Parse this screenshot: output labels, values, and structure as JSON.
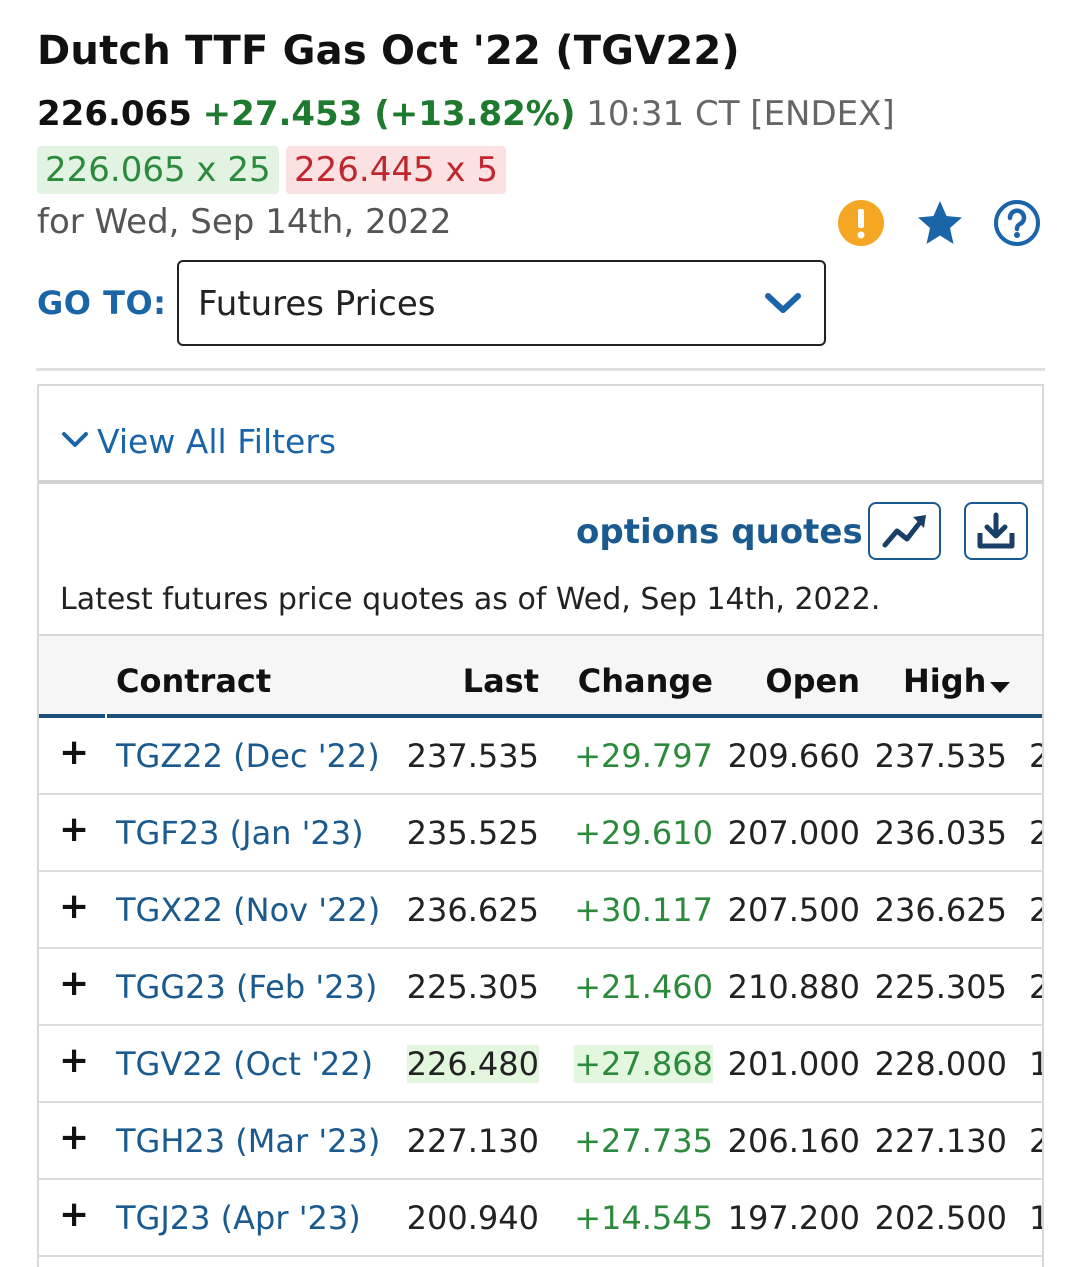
{
  "header": {
    "title": "Dutch TTF Gas Oct '22 (TGV22)",
    "last": "226.065",
    "change": "+27.453 (+13.82%)",
    "time": "10:31 CT [ENDEX]",
    "bid": "226.065 x 25",
    "ask": "226.445 x 5",
    "date": "for Wed, Sep 14th, 2022"
  },
  "icons": {
    "alert": "alert-icon",
    "star": "star-icon",
    "help": "help-icon"
  },
  "goto": {
    "label": "GO TO:",
    "selected": "Futures Prices"
  },
  "filters": {
    "label": "View All Filters"
  },
  "toolbar": {
    "options_link": "options quotes"
  },
  "asof": "Latest futures price quotes as of Wed, Sep 14th, 2022.",
  "table": {
    "headers": {
      "contract": "Contract",
      "last": "Last",
      "change": "Change",
      "open": "Open",
      "high": "High"
    },
    "rows": [
      {
        "plus": "+",
        "contract": "TGZ22 (Dec '22)",
        "last": "237.535",
        "change": "+29.797",
        "open": "209.660",
        "high": "237.535",
        "low": "2",
        "highlight": false
      },
      {
        "plus": "+",
        "contract": "TGF23 (Jan '23)",
        "last": "235.525",
        "change": "+29.610",
        "open": "207.000",
        "high": "236.035",
        "low": "2",
        "highlight": false
      },
      {
        "plus": "+",
        "contract": "TGX22 (Nov '22)",
        "last": "236.625",
        "change": "+30.117",
        "open": "207.500",
        "high": "236.625",
        "low": "2",
        "highlight": false
      },
      {
        "plus": "+",
        "contract": "TGG23 (Feb '23)",
        "last": "225.305",
        "change": "+21.460",
        "open": "210.880",
        "high": "225.305",
        "low": "2",
        "highlight": false
      },
      {
        "plus": "+",
        "contract": "TGV22 (Oct '22)",
        "last": "226.480",
        "change": "+27.868",
        "open": "201.000",
        "high": "228.000",
        "low": "1",
        "highlight": true
      },
      {
        "plus": "+",
        "contract": "TGH23 (Mar '23)",
        "last": "227.130",
        "change": "+27.735",
        "open": "206.160",
        "high": "227.130",
        "low": "2",
        "highlight": false
      },
      {
        "plus": "+",
        "contract": "TGJ23 (Apr '23)",
        "last": "200.940",
        "change": "+14.545",
        "open": "197.200",
        "high": "202.500",
        "low": "1",
        "highlight": false
      }
    ]
  },
  "colors": {
    "accent_blue": "#1a64a8",
    "link_blue": "#1a5a8f",
    "positive_green": "#2b8a3b",
    "negative_red": "#c0262d",
    "alert_orange": "#f5a623",
    "header_rule": "#1d4e7a"
  }
}
